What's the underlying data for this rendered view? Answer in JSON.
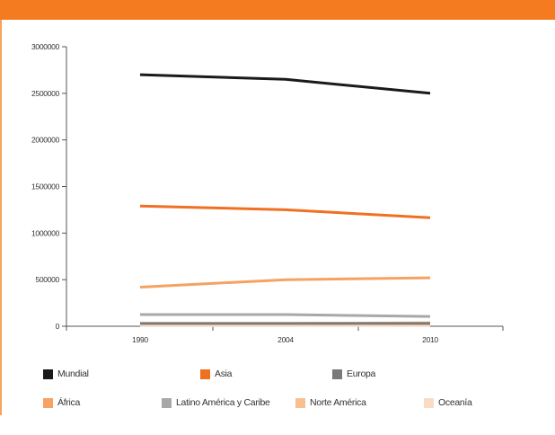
{
  "chart_data": {
    "type": "line",
    "x": [
      "1990",
      "2004",
      "2010"
    ],
    "ylim": [
      0,
      3000000
    ],
    "yticks": [
      "0",
      "500000",
      "1000000",
      "1500000",
      "2000000",
      "2500000",
      "3000000"
    ],
    "series": [
      {
        "name": "Mundial",
        "color": "#1a1a1a",
        "values": [
          2700000,
          2650000,
          2500000
        ]
      },
      {
        "name": "Asia",
        "color": "#f07022",
        "values": [
          1290000,
          1250000,
          1165000
        ]
      },
      {
        "name": "Europa",
        "color": "#7a7a7a",
        "values": [
          30000,
          30000,
          30000
        ]
      },
      {
        "name": "África",
        "color": "#f5a262",
        "values": [
          420000,
          500000,
          520000
        ]
      },
      {
        "name": "Latino América y Caribe",
        "color": "#a8a8a8",
        "values": [
          125000,
          125000,
          105000
        ]
      },
      {
        "name": "Norte América",
        "color": "#f8c08f",
        "values": [
          30000,
          30000,
          38000
        ]
      },
      {
        "name": "Oceanía",
        "color": "#fbdcc3",
        "values": [
          8000,
          8000,
          8000
        ]
      }
    ]
  }
}
